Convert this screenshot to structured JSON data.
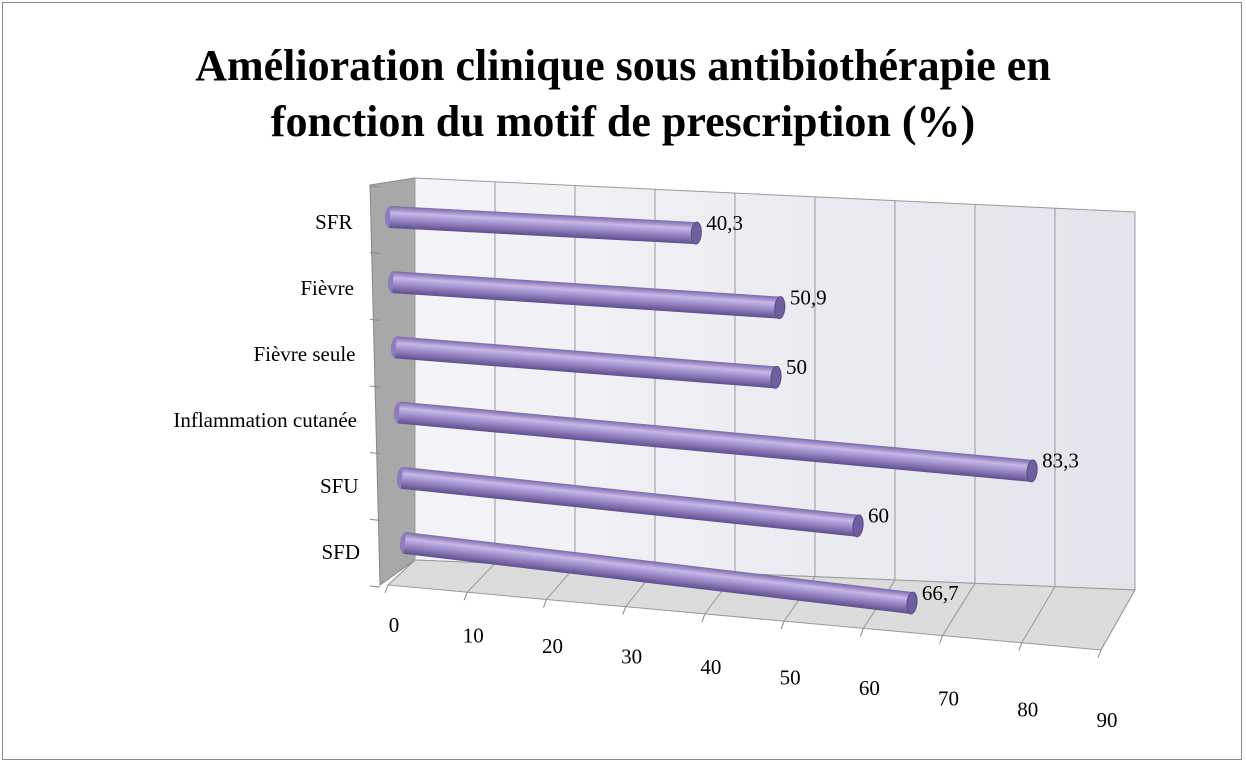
{
  "chart_data": {
    "type": "bar3d-horizontal",
    "title": "Amélioration clinique sous antibiothérapie en fonction du motif de prescription (%)",
    "categories": [
      "SFR",
      "Fièvre",
      "Fièvre seule",
      "Inflammation cutanée",
      "SFU",
      "SFD"
    ],
    "values": [
      40.3,
      50.9,
      50,
      83.3,
      60,
      66.7
    ],
    "value_labels": [
      "40,3",
      "50,9",
      "50",
      "83,3",
      "60",
      "66,7"
    ],
    "color": "#9b89c8",
    "xlim": [
      0,
      90
    ],
    "xticks": [
      0,
      10,
      20,
      30,
      40,
      50,
      60,
      70,
      80,
      90
    ],
    "grid": true
  }
}
